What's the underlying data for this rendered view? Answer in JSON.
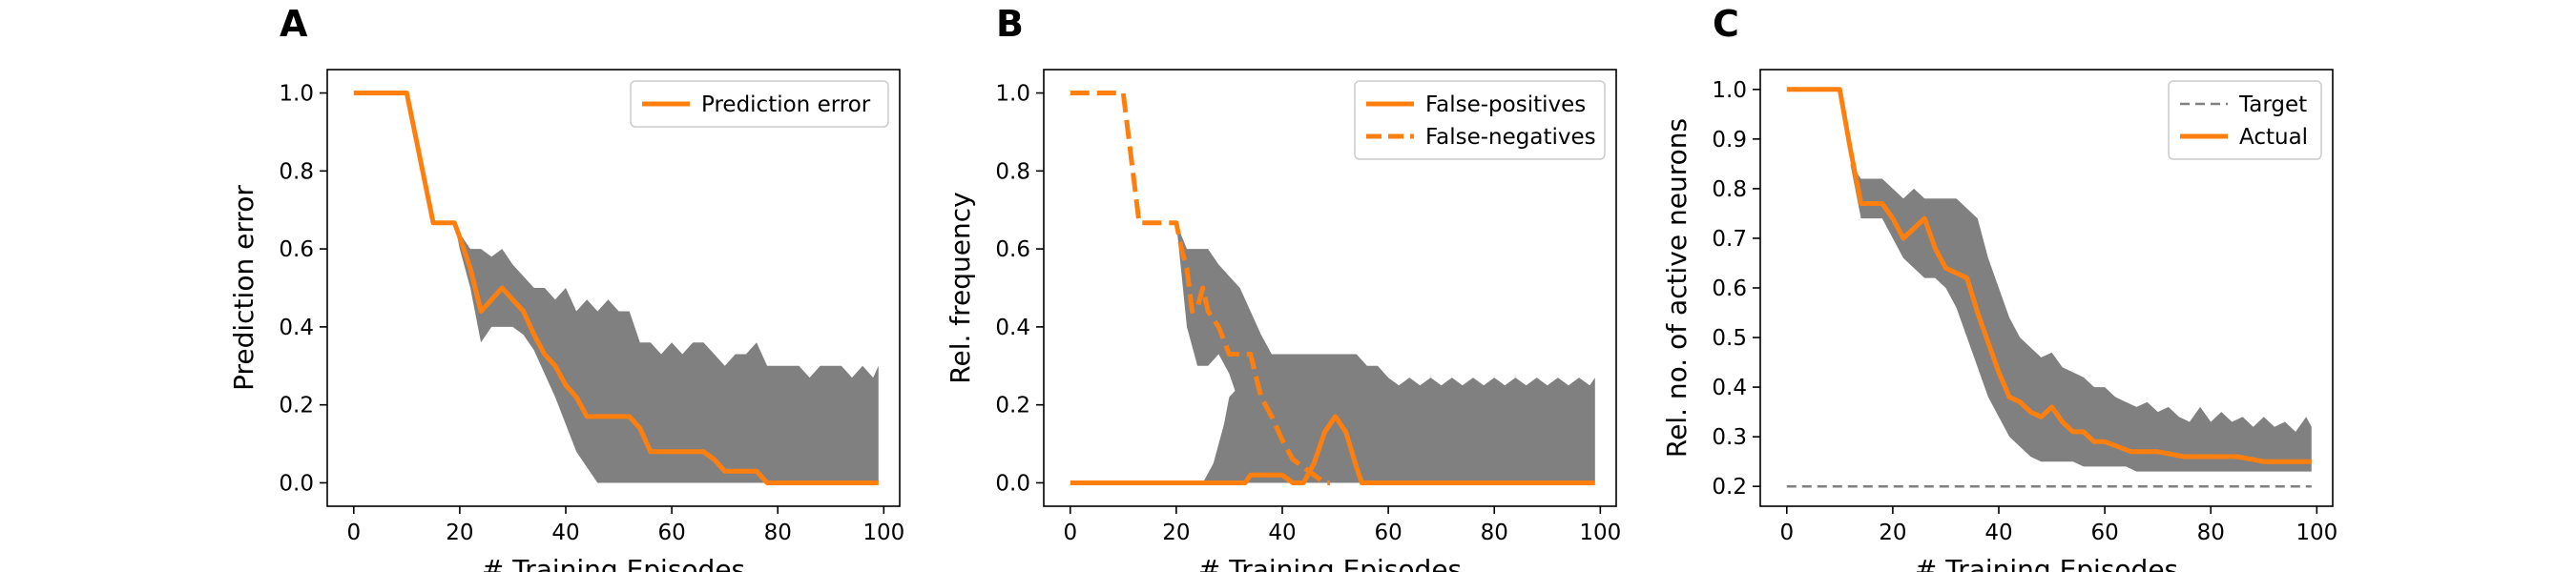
{
  "colors": {
    "orange": "#ff7f0e",
    "band": "#808080",
    "target": "#808080"
  },
  "chart_data": [
    {
      "panel": "A",
      "type": "line",
      "xlabel": "# Training Episodes",
      "ylabel": "Prediction error",
      "xlim": [
        -5,
        103
      ],
      "ylim": [
        -0.06,
        1.06
      ],
      "xticks": [
        0,
        20,
        40,
        60,
        80,
        100
      ],
      "yticks": [
        0.0,
        0.2,
        0.4,
        0.6,
        0.8,
        1.0
      ],
      "ytick_labels": [
        "0.0",
        "0.2",
        "0.4",
        "0.6",
        "0.8",
        "1.0"
      ],
      "legend": "top-right",
      "series": [
        {
          "name": "Prediction error",
          "style": "solid",
          "x": [
            0,
            10,
            15,
            19,
            20,
            22,
            24,
            26,
            28,
            30,
            32,
            34,
            36,
            38,
            40,
            42,
            44,
            46,
            48,
            50,
            52,
            54,
            56,
            58,
            60,
            62,
            64,
            66,
            68,
            70,
            72,
            74,
            76,
            78,
            80,
            85,
            90,
            95,
            99
          ],
          "y": [
            1.0,
            1.0,
            0.667,
            0.667,
            0.63,
            0.55,
            0.44,
            0.47,
            0.5,
            0.47,
            0.44,
            0.38,
            0.33,
            0.3,
            0.25,
            0.22,
            0.17,
            0.17,
            0.17,
            0.17,
            0.17,
            0.14,
            0.08,
            0.08,
            0.08,
            0.08,
            0.08,
            0.08,
            0.06,
            0.03,
            0.03,
            0.03,
            0.03,
            0.0,
            0.0,
            0.0,
            0.0,
            0.0,
            0.0
          ]
        }
      ],
      "bands": [
        {
          "x": [
            19,
            20,
            22,
            24,
            26,
            28,
            30,
            32,
            34,
            36,
            38,
            40,
            42,
            44,
            46,
            48,
            50,
            52,
            54,
            56,
            58,
            60,
            62,
            64,
            66,
            68,
            70,
            72,
            74,
            76,
            78,
            80,
            82,
            84,
            86,
            88,
            90,
            92,
            94,
            96,
            98,
            99
          ],
          "upper": [
            0.667,
            0.64,
            0.6,
            0.6,
            0.58,
            0.6,
            0.56,
            0.53,
            0.5,
            0.5,
            0.47,
            0.5,
            0.44,
            0.47,
            0.44,
            0.47,
            0.44,
            0.44,
            0.36,
            0.36,
            0.33,
            0.36,
            0.33,
            0.36,
            0.36,
            0.33,
            0.3,
            0.33,
            0.33,
            0.36,
            0.3,
            0.3,
            0.3,
            0.3,
            0.27,
            0.3,
            0.3,
            0.3,
            0.27,
            0.3,
            0.27,
            0.3
          ],
          "lower": [
            0.667,
            0.6,
            0.5,
            0.36,
            0.4,
            0.4,
            0.4,
            0.38,
            0.34,
            0.28,
            0.22,
            0.15,
            0.08,
            0.04,
            0.0,
            0.0,
            0.0,
            0.0,
            0.0,
            0.0,
            0.0,
            0.0,
            0.0,
            0.0,
            0.0,
            0.0,
            0.0,
            0.0,
            0.0,
            0.0,
            0.0,
            0.0,
            0.0,
            0.0,
            0.0,
            0.0,
            0.0,
            0.0,
            0.0,
            0.0,
            0.0,
            0.0
          ]
        }
      ]
    },
    {
      "panel": "B",
      "type": "line",
      "xlabel": "# Training Episodes",
      "ylabel": "Rel. frequency",
      "xlim": [
        -5,
        103
      ],
      "ylim": [
        -0.06,
        1.06
      ],
      "xticks": [
        0,
        20,
        40,
        60,
        80,
        100
      ],
      "yticks": [
        0.0,
        0.2,
        0.4,
        0.6,
        0.8,
        1.0
      ],
      "ytick_labels": [
        "0.0",
        "0.2",
        "0.4",
        "0.6",
        "0.8",
        "1.0"
      ],
      "legend": "top-right",
      "series": [
        {
          "name": "False-positives",
          "style": "solid",
          "x": [
            0,
            20,
            33,
            34,
            40,
            42,
            44,
            46,
            48,
            50,
            52,
            54,
            55,
            60,
            80,
            99
          ],
          "y": [
            0.0,
            0.0,
            0.0,
            0.02,
            0.02,
            0.0,
            0.0,
            0.05,
            0.13,
            0.17,
            0.13,
            0.04,
            0.0,
            0.0,
            0.0,
            0.0
          ]
        },
        {
          "name": "False-negatives",
          "style": "dashed",
          "x": [
            0,
            10,
            13,
            17,
            20,
            21,
            22,
            23,
            24,
            25,
            26,
            28,
            30,
            31,
            32,
            34,
            36,
            38,
            40,
            42,
            44,
            46,
            48,
            49
          ],
          "y": [
            1.0,
            1.0,
            0.667,
            0.667,
            0.667,
            0.6,
            0.55,
            0.44,
            0.45,
            0.5,
            0.44,
            0.4,
            0.33,
            0.33,
            0.33,
            0.33,
            0.22,
            0.17,
            0.11,
            0.06,
            0.04,
            0.02,
            0.0,
            0.0
          ]
        }
      ],
      "bands": [
        {
          "x": [
            20,
            22,
            24,
            26,
            28,
            30,
            32,
            34,
            36,
            38,
            40,
            42,
            44,
            46,
            50,
            54,
            56,
            58,
            60,
            62,
            64,
            66,
            68,
            70,
            72,
            74,
            76,
            78,
            80,
            82,
            84,
            86,
            88,
            90,
            92,
            94,
            96,
            98,
            99
          ],
          "upper": [
            0.667,
            0.6,
            0.6,
            0.6,
            0.56,
            0.53,
            0.5,
            0.44,
            0.38,
            0.33,
            0.33,
            0.33,
            0.33,
            0.33,
            0.33,
            0.33,
            0.3,
            0.3,
            0.27,
            0.25,
            0.27,
            0.25,
            0.27,
            0.25,
            0.27,
            0.25,
            0.27,
            0.25,
            0.27,
            0.25,
            0.27,
            0.25,
            0.27,
            0.25,
            0.27,
            0.25,
            0.27,
            0.25,
            0.27
          ],
          "lower": [
            0.667,
            0.4,
            0.3,
            0.3,
            0.33,
            0.28,
            0.2,
            0.15,
            0.1,
            0.05,
            0.0,
            0.0,
            0.0,
            0.0,
            0.0,
            0.0,
            0.0,
            0.0,
            0.0,
            0.0,
            0.0,
            0.0,
            0.0,
            0.0,
            0.0,
            0.0,
            0.0,
            0.0,
            0.0,
            0.0,
            0.0,
            0.0,
            0.0,
            0.0,
            0.0,
            0.0,
            0.0,
            0.0,
            0.0
          ]
        },
        {
          "x": [
            25,
            27,
            29,
            30,
            32,
            34,
            36,
            38,
            40
          ],
          "upper": [
            0.0,
            0.05,
            0.15,
            0.22,
            0.25,
            0.27,
            0.3,
            0.32,
            0.33
          ],
          "lower": [
            0.0,
            0.0,
            0.0,
            0.0,
            0.0,
            0.0,
            0.0,
            0.0,
            0.0
          ]
        }
      ]
    },
    {
      "panel": "C",
      "type": "line",
      "xlabel": "# Training Episodes",
      "ylabel": "Rel. no. of active neurons",
      "xlim": [
        -5,
        103
      ],
      "ylim": [
        0.16,
        1.04
      ],
      "xticks": [
        0,
        20,
        40,
        60,
        80,
        100
      ],
      "yticks": [
        0.2,
        0.3,
        0.4,
        0.5,
        0.6,
        0.7,
        0.8,
        0.9,
        1.0
      ],
      "ytick_labels": [
        "0.2",
        "0.3",
        "0.4",
        "0.5",
        "0.6",
        "0.7",
        "0.8",
        "0.9",
        "1.0"
      ],
      "legend": "top-right",
      "series": [
        {
          "name": "Target",
          "style": "dashed",
          "x": [
            0,
            99
          ],
          "y": [
            0.2,
            0.2
          ]
        },
        {
          "name": "Actual",
          "style": "solid",
          "x": [
            0,
            10,
            12,
            14,
            16,
            18,
            20,
            22,
            24,
            26,
            28,
            30,
            32,
            34,
            36,
            38,
            40,
            42,
            44,
            46,
            48,
            50,
            52,
            54,
            56,
            58,
            60,
            65,
            70,
            75,
            80,
            85,
            90,
            95,
            99
          ],
          "y": [
            1.0,
            1.0,
            0.88,
            0.77,
            0.77,
            0.77,
            0.74,
            0.7,
            0.72,
            0.74,
            0.68,
            0.64,
            0.63,
            0.62,
            0.55,
            0.49,
            0.43,
            0.38,
            0.37,
            0.35,
            0.34,
            0.36,
            0.33,
            0.31,
            0.31,
            0.29,
            0.29,
            0.27,
            0.27,
            0.26,
            0.26,
            0.26,
            0.25,
            0.25,
            0.25
          ]
        }
      ],
      "bands": [
        {
          "x": [
            12,
            14,
            16,
            18,
            20,
            22,
            24,
            26,
            28,
            30,
            32,
            34,
            36,
            38,
            40,
            42,
            44,
            46,
            48,
            50,
            52,
            54,
            56,
            58,
            60,
            62,
            64,
            66,
            68,
            70,
            72,
            74,
            76,
            78,
            80,
            82,
            84,
            86,
            88,
            90,
            92,
            94,
            96,
            98,
            99
          ],
          "upper": [
            0.85,
            0.82,
            0.82,
            0.82,
            0.8,
            0.78,
            0.8,
            0.78,
            0.78,
            0.78,
            0.78,
            0.76,
            0.74,
            0.66,
            0.6,
            0.54,
            0.5,
            0.48,
            0.46,
            0.47,
            0.44,
            0.43,
            0.42,
            0.4,
            0.4,
            0.38,
            0.37,
            0.36,
            0.37,
            0.35,
            0.36,
            0.34,
            0.33,
            0.36,
            0.33,
            0.35,
            0.33,
            0.34,
            0.32,
            0.34,
            0.32,
            0.33,
            0.31,
            0.34,
            0.32
          ],
          "lower": [
            0.85,
            0.74,
            0.74,
            0.74,
            0.7,
            0.66,
            0.64,
            0.62,
            0.62,
            0.6,
            0.56,
            0.5,
            0.44,
            0.38,
            0.34,
            0.3,
            0.28,
            0.26,
            0.25,
            0.25,
            0.25,
            0.25,
            0.24,
            0.24,
            0.24,
            0.24,
            0.24,
            0.23,
            0.23,
            0.23,
            0.23,
            0.23,
            0.23,
            0.23,
            0.23,
            0.23,
            0.23,
            0.23,
            0.23,
            0.23,
            0.23,
            0.23,
            0.23,
            0.23,
            0.23
          ]
        }
      ]
    }
  ]
}
